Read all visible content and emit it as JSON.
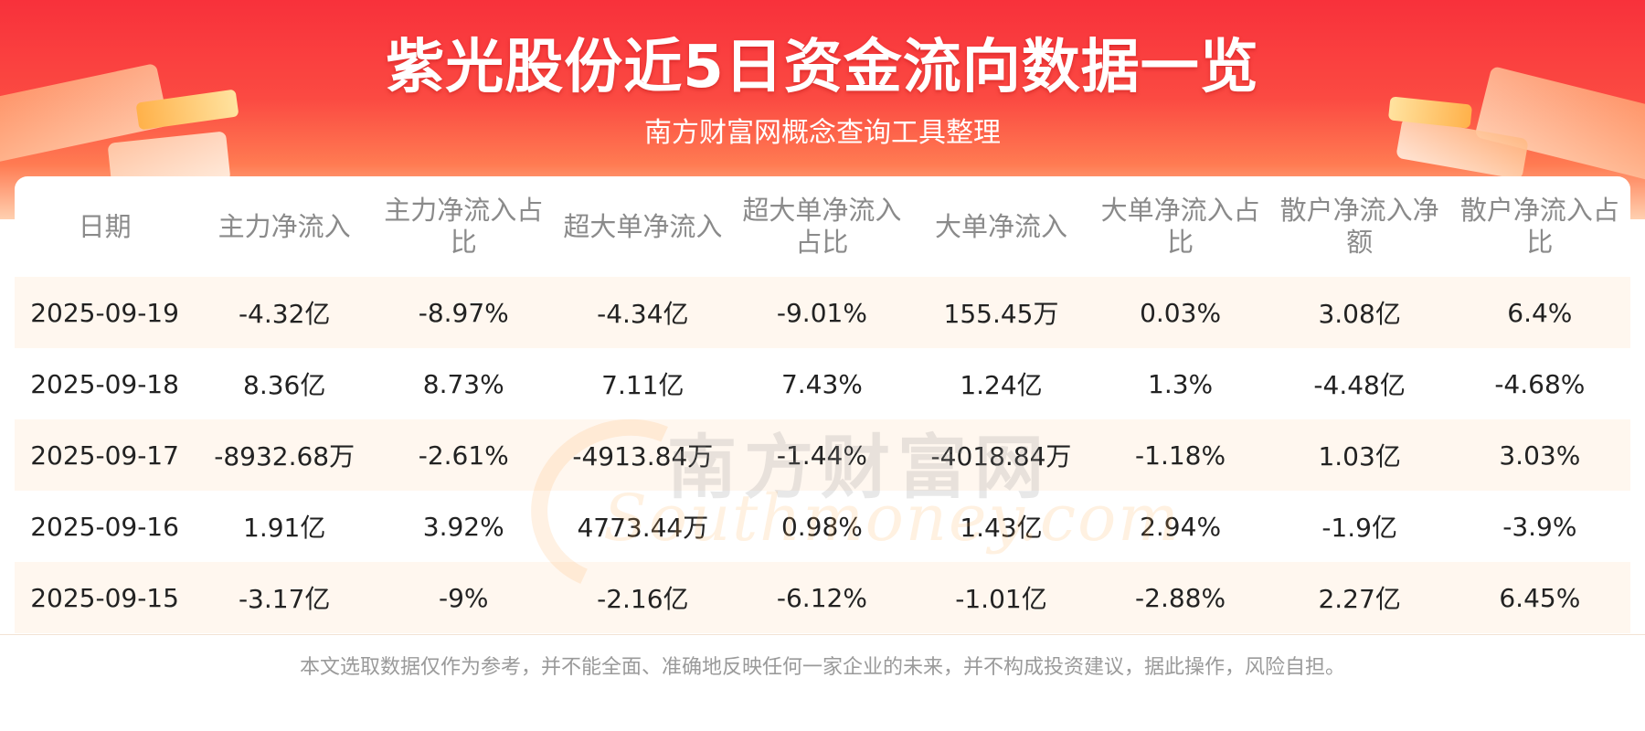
{
  "header": {
    "title": "紫光股份近5日资金流向数据一览",
    "subtitle": "南方财富网概念查询工具整理"
  },
  "watermark": {
    "cn": "南方财富网",
    "en": "Southmoney.com"
  },
  "table": {
    "columns": [
      "日期",
      "主力净流入",
      "主力净流入占比",
      "超大单净流入",
      "超大单净流入占比",
      "大单净流入",
      "大单净流入占比",
      "散户净流入净额",
      "散户净流入占比"
    ],
    "rows": [
      [
        "2025-09-19",
        "-4.32亿",
        "-8.97%",
        "-4.34亿",
        "-9.01%",
        "155.45万",
        "0.03%",
        "3.08亿",
        "6.4%"
      ],
      [
        "2025-09-18",
        "8.36亿",
        "8.73%",
        "7.11亿",
        "7.43%",
        "1.24亿",
        "1.3%",
        "-4.48亿",
        "-4.68%"
      ],
      [
        "2025-09-17",
        "-8932.68万",
        "-2.61%",
        "-4913.84万",
        "-1.44%",
        "-4018.84万",
        "-1.18%",
        "1.03亿",
        "3.03%"
      ],
      [
        "2025-09-16",
        "1.91亿",
        "3.92%",
        "4773.44万",
        "0.98%",
        "1.43亿",
        "2.94%",
        "-1.9亿",
        "-3.9%"
      ],
      [
        "2025-09-15",
        "-3.17亿",
        "-9%",
        "-2.16亿",
        "-6.12%",
        "-1.01亿",
        "-2.88%",
        "2.27亿",
        "6.45%"
      ]
    ]
  },
  "footer": {
    "disclaimer": "本文选取数据仅作为参考，并不能全面、准确地反映任何一家企业的未来，并不构成投资建议，据此操作，风险自担。"
  },
  "colors": {
    "banner_red": "#f8313b",
    "row_stripe": "#fff7ef",
    "header_text": "#8a8a8a",
    "body_text": "#222222"
  }
}
